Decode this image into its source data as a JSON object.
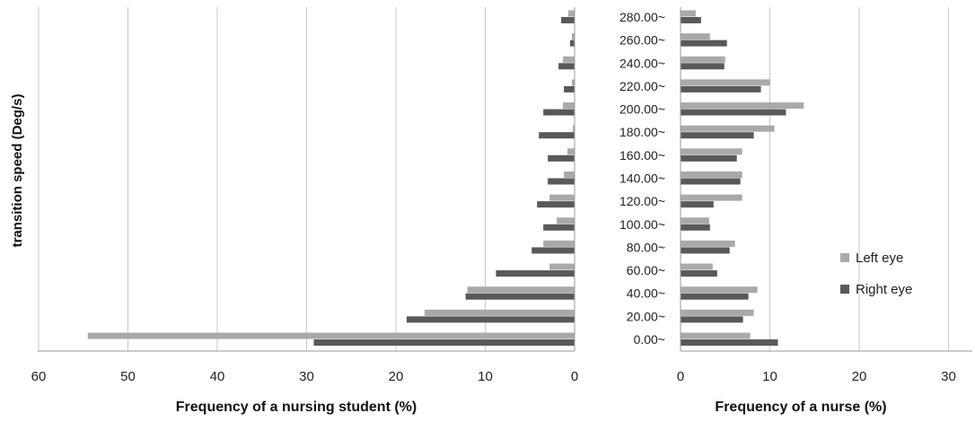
{
  "chart_data": [
    {
      "type": "bar",
      "orientation": "horizontal",
      "direction": "reversed",
      "xlabel": "Frequency of  a nursing student  (%)",
      "ylabel": "transition speed (Deg/s)",
      "xlim": [
        0,
        60
      ],
      "x_ticks": [
        "60",
        "50",
        "40",
        "30",
        "20",
        "10",
        "0"
      ],
      "grid": true,
      "categories": [
        "0.00~",
        "20.00~",
        "40.00~",
        "60.00~",
        "80.00~",
        "100.00~",
        "120.00~",
        "140.00~",
        "160.00~",
        "180.00~",
        "200.00~",
        "220.00~",
        "240.00~",
        "260.00~",
        "280.00~"
      ],
      "series": [
        {
          "name": "Left eye",
          "color": "#a9a9a9",
          "values": [
            54.5,
            16.8,
            12.0,
            2.8,
            3.5,
            2.0,
            2.8,
            1.2,
            0.8,
            0.2,
            1.3,
            0.3,
            1.3,
            0.3,
            0.7
          ]
        },
        {
          "name": "Right eye",
          "color": "#595959",
          "values": [
            29.2,
            18.8,
            12.2,
            8.8,
            4.8,
            3.5,
            4.2,
            3.0,
            3.0,
            4.0,
            3.5,
            1.2,
            1.8,
            0.5,
            1.5
          ]
        }
      ]
    },
    {
      "type": "bar",
      "orientation": "horizontal",
      "xlabel": "Frequency of  a nurse (%)",
      "ylabel": "",
      "xlim": [
        0,
        30
      ],
      "x_ticks": [
        "0",
        "10",
        "20",
        "30"
      ],
      "grid": true,
      "legend_position": "right",
      "categories": [
        "0.00~",
        "20.00~",
        "40.00~",
        "60.00~",
        "80.00~",
        "100.00~",
        "120.00~",
        "140.00~",
        "160.00~",
        "180.00~",
        "200.00~",
        "220.00~",
        "240.00~",
        "260.00~",
        "280.00~"
      ],
      "series": [
        {
          "name": "Left eye",
          "color": "#a9a9a9",
          "values": [
            7.8,
            8.2,
            8.6,
            3.6,
            6.1,
            3.2,
            6.9,
            6.9,
            6.9,
            10.5,
            13.8,
            10.0,
            5.0,
            3.3,
            1.7
          ]
        },
        {
          "name": "Right eye",
          "color": "#595959",
          "values": [
            10.9,
            7.0,
            7.6,
            4.1,
            5.5,
            3.3,
            3.7,
            6.7,
            6.3,
            8.2,
            11.8,
            9.0,
            4.9,
            5.2,
            2.3
          ]
        }
      ]
    }
  ]
}
